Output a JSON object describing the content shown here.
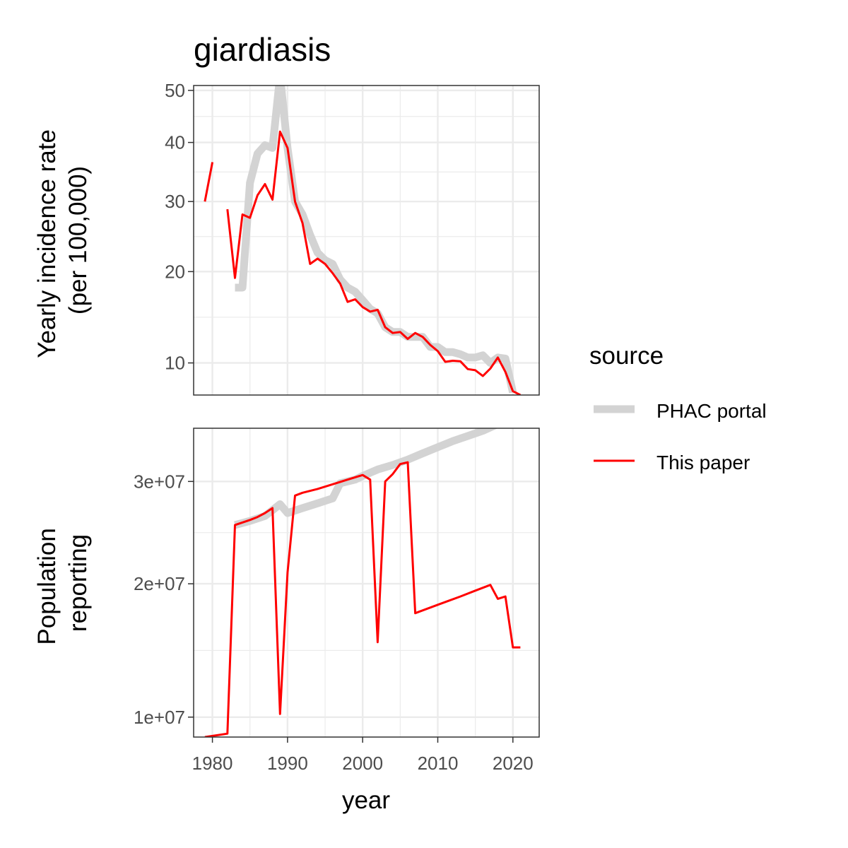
{
  "chart_data": {
    "type": "line",
    "title": "giardiasis",
    "xlabel": "year",
    "x_ticks": [
      1980,
      1990,
      2000,
      2010,
      2020
    ],
    "xlim": [
      1977.5,
      2023.5
    ],
    "legend": {
      "title": "source",
      "position": "right"
    },
    "series_styles": [
      {
        "name": "PHAC portal",
        "color": "#d3d3d3"
      },
      {
        "name": "This paper",
        "color": "#ff0000"
      }
    ],
    "panels": [
      {
        "ylabel_lines": [
          "Yearly incidence rate",
          "(per 100,000)"
        ],
        "y_scale": "sqrt",
        "ylim": [
          7.3,
          51
        ],
        "y_ticks": [
          10,
          20,
          30,
          40,
          50
        ],
        "y_tick_labels": [
          "10",
          "20",
          "30",
          "40",
          "50"
        ],
        "series": [
          {
            "name": "PHAC portal",
            "points": [
              [
                1983,
                18
              ],
              [
                1984,
                18
              ],
              [
                1985,
                33
              ],
              [
                1986,
                38
              ],
              [
                1987,
                39.5
              ],
              [
                1988,
                39
              ],
              [
                1989,
                53
              ],
              [
                1990,
                39
              ],
              [
                1991,
                30
              ],
              [
                1992,
                28
              ],
              [
                1993,
                25
              ],
              [
                1994,
                22.5
              ],
              [
                1995,
                21.5
              ],
              [
                1996,
                21
              ],
              [
                1997,
                19
              ],
              [
                1998,
                18
              ],
              [
                1999,
                17.5
              ],
              [
                2000,
                16.5
              ],
              [
                2001,
                15.5
              ],
              [
                2002,
                15
              ],
              [
                2003,
                13.5
              ],
              [
                2004,
                13
              ],
              [
                2005,
                13
              ],
              [
                2006,
                12.5
              ],
              [
                2007,
                12.5
              ],
              [
                2008,
                12.5
              ],
              [
                2009,
                11.5
              ],
              [
                2010,
                11.5
              ],
              [
                2011,
                11
              ],
              [
                2012,
                11
              ],
              [
                2013,
                10.8
              ],
              [
                2014,
                10.5
              ],
              [
                2015,
                10.5
              ],
              [
                2016,
                10.7
              ],
              [
                2017,
                10
              ],
              [
                2018,
                10.5
              ],
              [
                2019,
                10.4
              ],
              [
                2020,
                7.5
              ]
            ]
          },
          {
            "name": "This paper",
            "segments": [
              [
                [
                  1979,
                  30
                ],
                [
                  1980,
                  36.5
                ]
              ],
              [
                [
                  1982,
                  28.8
                ],
                [
                  1983,
                  19.2
                ],
                [
                  1984,
                  28
                ],
                [
                  1985,
                  27.5
                ],
                [
                  1986,
                  31
                ],
                [
                  1987,
                  32.8
                ],
                [
                  1988,
                  30.3
                ],
                [
                  1989,
                  42
                ],
                [
                  1990,
                  39
                ],
                [
                  1991,
                  30
                ],
                [
                  1992,
                  26.7
                ],
                [
                  1993,
                  21
                ],
                [
                  1994,
                  21.7
                ],
                [
                  1995,
                  21
                ],
                [
                  1996,
                  19.8
                ],
                [
                  1997,
                  18.5
                ],
                [
                  1998,
                  16.3
                ],
                [
                  1999,
                  16.6
                ],
                [
                  2000,
                  15.7
                ],
                [
                  2001,
                  15.2
                ],
                [
                  2002,
                  15.4
                ],
                [
                  2003,
                  13.5
                ],
                [
                  2004,
                  12.9
                ],
                [
                  2005,
                  13
                ],
                [
                  2006,
                  12.3
                ],
                [
                  2007,
                  12.9
                ],
                [
                  2008,
                  12.5
                ],
                [
                  2009,
                  11.7
                ],
                [
                  2010,
                  11.1
                ],
                [
                  2011,
                  10.1
                ],
                [
                  2012,
                  10.2
                ],
                [
                  2013,
                  10.15
                ],
                [
                  2014,
                  9.45
                ],
                [
                  2015,
                  9.35
                ],
                [
                  2016,
                  8.85
                ],
                [
                  2017,
                  9.5
                ],
                [
                  2018,
                  10.5
                ],
                [
                  2019,
                  9.2
                ],
                [
                  2020,
                  7.6
                ],
                [
                  2021,
                  7.3
                ]
              ]
            ]
          }
        ]
      },
      {
        "ylabel_lines": [
          "Population",
          "reporting"
        ],
        "y_scale": "sqrt",
        "ylim": [
          8800000,
          36000000
        ],
        "y_ticks": [
          10000000,
          20000000,
          30000000
        ],
        "y_tick_labels": [
          "1e+07",
          "2e+07",
          "3e+07"
        ],
        "series": [
          {
            "name": "PHAC portal",
            "points": [
              [
                1983,
                25500000
              ],
              [
                1985,
                25900000
              ],
              [
                1987,
                26400000
              ],
              [
                1989,
                27600000
              ],
              [
                1990,
                26700000
              ],
              [
                1992,
                27200000
              ],
              [
                1994,
                27700000
              ],
              [
                1996,
                28200000
              ],
              [
                1997,
                29800000
              ],
              [
                1999,
                30200000
              ],
              [
                2000,
                30600000
              ],
              [
                2002,
                31300000
              ],
              [
                2004,
                31800000
              ],
              [
                2006,
                32400000
              ],
              [
                2008,
                33100000
              ],
              [
                2010,
                33800000
              ],
              [
                2012,
                34500000
              ],
              [
                2014,
                35100000
              ],
              [
                2016,
                35700000
              ],
              [
                2018,
                36500000
              ],
              [
                2020,
                37500000
              ]
            ]
          },
          {
            "name": "This paper",
            "segments": [
              [
                [
                  1979,
                  8800000
                ],
                [
                  1982,
                  9000000
                ],
                [
                  1983,
                  25500000
                ],
                [
                  1985,
                  26000000
                ],
                [
                  1986,
                  26300000
                ],
                [
                  1987,
                  26700000
                ],
                [
                  1988,
                  27200000
                ],
                [
                  1989,
                  10200000
                ],
                [
                  1990,
                  21000000
                ],
                [
                  1991,
                  28500000
                ],
                [
                  1992,
                  28800000
                ],
                [
                  1994,
                  29200000
                ],
                [
                  1996,
                  29700000
                ],
                [
                  1998,
                  30200000
                ],
                [
                  2000,
                  30700000
                ],
                [
                  2001,
                  30200000
                ],
                [
                  2002,
                  15200000
                ],
                [
                  2003,
                  30000000
                ],
                [
                  2004,
                  30800000
                ],
                [
                  2005,
                  31900000
                ],
                [
                  2006,
                  32100000
                ],
                [
                  2007,
                  17500000
                ],
                [
                  2010,
                  18200000
                ],
                [
                  2013,
                  18900000
                ],
                [
                  2015,
                  19400000
                ],
                [
                  2017,
                  19900000
                ],
                [
                  2018,
                  18700000
                ],
                [
                  2019,
                  18900000
                ],
                [
                  2020,
                  14800000
                ],
                [
                  2021,
                  14800000
                ]
              ]
            ]
          }
        ]
      }
    ]
  }
}
